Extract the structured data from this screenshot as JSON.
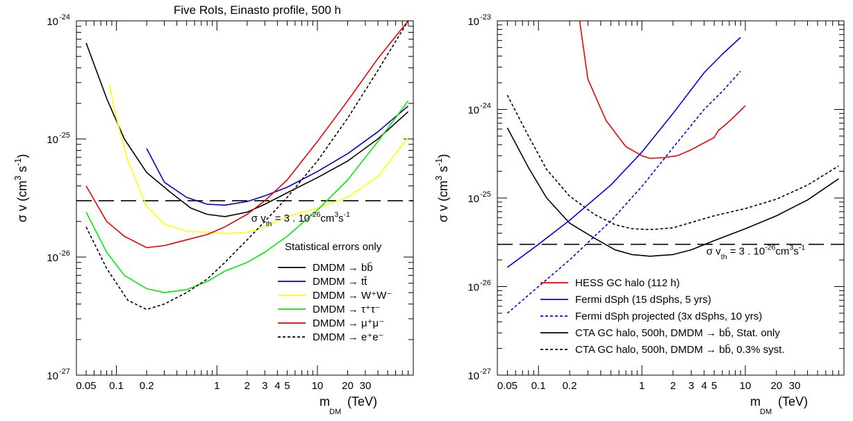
{
  "chart_data": [
    {
      "type": "line",
      "title": "Five RoIs, Einasto profile, 500 h",
      "xlabel": {
        "main": "m",
        "sub": "DM",
        "unit": "(TeV)"
      },
      "ylabel": {
        "main": "σ v (cm",
        "sup1": "3",
        "mid": " s",
        "sup2": "-1",
        "close": ")"
      },
      "x_scale": "log",
      "y_scale": "log",
      "xlim": [
        0.04,
        90
      ],
      "ylim": [
        1e-27,
        1e-24
      ],
      "x_ticks": [
        {
          "value": 0.05,
          "label": "0.05"
        },
        {
          "value": 0.1,
          "label": "0.1"
        },
        {
          "value": 0.2,
          "label": "0.2"
        },
        {
          "value": 1,
          "label": "1"
        },
        {
          "value": 2,
          "label": "2"
        },
        {
          "value": 3,
          "label": "3"
        },
        {
          "value": 4,
          "label": "4"
        },
        {
          "value": 5,
          "label": "5"
        },
        {
          "value": 10,
          "label": "10"
        },
        {
          "value": 20,
          "label": "20"
        },
        {
          "value": 30,
          "label": "30"
        }
      ],
      "y_ticks": [
        {
          "exp": -24,
          "label": "-24"
        },
        {
          "exp": -25,
          "label": "-25"
        },
        {
          "exp": -26,
          "label": "-26"
        },
        {
          "exp": -27,
          "label": "-27"
        }
      ],
      "hline": {
        "y": 3e-26,
        "style": "dashed",
        "color": "#000000"
      },
      "annotation": {
        "main": "σ v",
        "sub": "th",
        "mid": " = 3 . 10",
        "sup1": "-26",
        "unit": "cm",
        "sup2": "3",
        "unit2": "s",
        "sup3": "-1",
        "x": 2.2,
        "y": 2e-26
      },
      "legend_title": "Statistical errors only",
      "legend_position": "bottom-right",
      "series": [
        {
          "name": "DMDM → bb̄",
          "color": "#000000",
          "style": "solid",
          "x": [
            0.05,
            0.08,
            0.12,
            0.2,
            0.35,
            0.55,
            0.8,
            1.2,
            2,
            3,
            5,
            10,
            20,
            40,
            80
          ],
          "y": [
            6.5e-25,
            2.2e-25,
            1e-25,
            5.2e-26,
            3.5e-26,
            2.6e-26,
            2.3e-26,
            2.2e-26,
            2.4e-26,
            2.8e-26,
            3.5e-26,
            4.7e-26,
            6.5e-26,
            1e-25,
            1.7e-25
          ]
        },
        {
          "name": "DMDM → tt̄",
          "color": "#0000cc",
          "style": "solid",
          "x": [
            0.2,
            0.3,
            0.5,
            0.8,
            1.2,
            2,
            3,
            5,
            10,
            20,
            40,
            80
          ],
          "y": [
            8.3e-26,
            4.3e-26,
            3.2e-26,
            2.8e-26,
            2.75e-26,
            2.95e-26,
            3.3e-26,
            3.9e-26,
            5.3e-26,
            7.5e-26,
            1.15e-25,
            1.9e-25
          ]
        },
        {
          "name": "DMDM → W⁺W⁻",
          "color": "#ffff00",
          "style": "solid",
          "x": [
            0.085,
            0.1,
            0.13,
            0.2,
            0.3,
            0.5,
            0.8,
            1.2,
            2,
            3,
            5,
            10,
            20,
            40,
            80
          ],
          "y": [
            2.9e-25,
            1.5e-25,
            6.5e-26,
            2.7e-26,
            1.9e-26,
            1.65e-26,
            1.62e-26,
            1.58e-26,
            1.62e-26,
            1.8e-26,
            2.2e-26,
            2.6e-26,
            3.2e-26,
            4.8e-26,
            1.03e-25
          ]
        },
        {
          "name": "DMDM → τ⁺τ⁻",
          "color": "#00ee00",
          "style": "solid",
          "x": [
            0.05,
            0.08,
            0.12,
            0.2,
            0.3,
            0.5,
            0.8,
            1.2,
            2,
            3,
            5,
            10,
            20,
            40,
            80
          ],
          "y": [
            2.4e-26,
            1.1e-26,
            7e-27,
            5.4e-27,
            5e-27,
            5.3e-27,
            6.2e-27,
            7.6e-27,
            9e-27,
            1.1e-26,
            1.5e-26,
            2.5e-26,
            4.5e-26,
            9.5e-26,
            2.1e-25
          ]
        },
        {
          "name": "DMDM → μ⁺μ⁻",
          "color": "#ee0000",
          "style": "solid",
          "x": [
            0.05,
            0.08,
            0.12,
            0.2,
            0.3,
            0.5,
            0.8,
            1.2,
            2,
            3,
            5,
            10,
            20,
            40,
            80
          ],
          "y": [
            4e-26,
            2e-26,
            1.5e-26,
            1.2e-26,
            1.25e-26,
            1.4e-26,
            1.55e-26,
            1.8e-26,
            2.3e-26,
            3e-26,
            4.5e-26,
            9.5e-26,
            2.1e-25,
            4.8e-25,
            1e-24
          ]
        },
        {
          "name": "DMDM → e⁺e⁻",
          "color": "#000000",
          "style": "dotted",
          "x": [
            0.05,
            0.08,
            0.13,
            0.2,
            0.3,
            0.5,
            0.8,
            1.2,
            2,
            3,
            5,
            10,
            20,
            40,
            80
          ],
          "y": [
            1.8e-26,
            8e-27,
            4.3e-27,
            3.6e-27,
            4e-27,
            5e-27,
            6.5e-27,
            9e-27,
            1.4e-26,
            2e-26,
            3.2e-26,
            6.5e-26,
            1.5e-25,
            3.8e-25,
            1e-24
          ]
        }
      ]
    },
    {
      "type": "line",
      "title": "",
      "xlabel": {
        "main": "m",
        "sub": "DM",
        "unit": "(TeV)"
      },
      "ylabel": {
        "main": "σ v (cm",
        "sup1": "3",
        "mid": " s",
        "sup2": "-1",
        "close": ")"
      },
      "x_scale": "log",
      "y_scale": "log",
      "xlim": [
        0.04,
        90
      ],
      "ylim": [
        1e-27,
        1e-23
      ],
      "x_ticks": [
        {
          "value": 0.05,
          "label": "0.05"
        },
        {
          "value": 0.1,
          "label": "0.1"
        },
        {
          "value": 0.2,
          "label": "0.2"
        },
        {
          "value": 1,
          "label": "1"
        },
        {
          "value": 2,
          "label": "2"
        },
        {
          "value": 3,
          "label": "3"
        },
        {
          "value": 4,
          "label": "4"
        },
        {
          "value": 5,
          "label": "5"
        },
        {
          "value": 10,
          "label": "10"
        },
        {
          "value": 20,
          "label": "20"
        },
        {
          "value": 30,
          "label": "30"
        }
      ],
      "y_ticks": [
        {
          "exp": -23,
          "label": "-23"
        },
        {
          "exp": -24,
          "label": "-24"
        },
        {
          "exp": -25,
          "label": "-25"
        },
        {
          "exp": -26,
          "label": "-26"
        },
        {
          "exp": -27,
          "label": "-27"
        }
      ],
      "hline": {
        "y": 3e-26,
        "style": "dashed",
        "color": "#000000"
      },
      "annotation": {
        "main": "σ v",
        "sub": "th",
        "mid": " = 3 . 10",
        "sup1": "-26",
        "unit": "cm",
        "sup2": "3",
        "unit2": "s",
        "sup3": "-1",
        "x": 4.2,
        "y": 2.3e-26
      },
      "legend_title": "",
      "legend_position": "bottom-right",
      "series": [
        {
          "name": "HESS GC halo (112 h)",
          "color": "#ee0000",
          "style": "solid",
          "x": [
            0.25,
            0.3,
            0.45,
            0.7,
            1.0,
            1.2,
            1.6,
            2.2,
            3,
            4,
            5,
            5.5,
            6.5,
            8,
            10
          ],
          "y": [
            1e-23,
            2.2e-24,
            7.5e-25,
            3.8e-25,
            3e-25,
            2.8e-25,
            2.85e-25,
            3e-25,
            3.5e-25,
            4.2e-25,
            4.8e-25,
            5.8e-25,
            6.8e-25,
            8.5e-25,
            1.1e-24
          ]
        },
        {
          "name": "Fermi dSph (15 dSphs, 5 yrs)",
          "color": "#0000ee",
          "style": "solid",
          "x": [
            0.05,
            0.1,
            0.2,
            0.5,
            1,
            2,
            4,
            6,
            9
          ],
          "y": [
            1.65e-26,
            3e-26,
            5.6e-26,
            1.4e-25,
            3.3e-25,
            9e-25,
            2.6e-24,
            4.2e-24,
            6.5e-24
          ]
        },
        {
          "name": "Fermi dSph projected (3x dSphs, 10 yrs)",
          "color": "#0000ee",
          "style": "dotted",
          "x": [
            0.05,
            0.1,
            0.2,
            0.5,
            1,
            2,
            4,
            6,
            9
          ],
          "y": [
            5e-27,
            1e-26,
            2e-26,
            5.5e-26,
            1.35e-25,
            3.7e-25,
            1e-24,
            1.6e-24,
            2.7e-24
          ]
        },
        {
          "name": "CTA GC halo, 500h, DMDM  → bb̄, Stat. only",
          "color": "#000000",
          "style": "solid",
          "x": [
            0.05,
            0.08,
            0.12,
            0.2,
            0.35,
            0.55,
            0.8,
            1.2,
            2,
            3,
            5,
            10,
            20,
            40,
            80
          ],
          "y": [
            6.2e-25,
            2.2e-25,
            1e-25,
            5.2e-26,
            3.5e-26,
            2.6e-26,
            2.3e-26,
            2.2e-26,
            2.3e-26,
            2.6e-26,
            3.3e-26,
            4.5e-26,
            6.3e-26,
            9.5e-26,
            1.65e-25
          ]
        },
        {
          "name": "CTA GC halo, 500h, DMDM  → bb̄, 0.3% syst.",
          "color": "#000000",
          "style": "dotted",
          "x": [
            0.05,
            0.08,
            0.12,
            0.2,
            0.35,
            0.55,
            0.8,
            1.2,
            2,
            3,
            5,
            10,
            20,
            40,
            80
          ],
          "y": [
            1.45e-24,
            5e-25,
            2.1e-25,
            1.05e-25,
            6.5e-26,
            5e-26,
            4.5e-26,
            4.4e-26,
            4.6e-26,
            5.3e-26,
            6.3e-26,
            7.6e-26,
            9.7e-26,
            1.4e-25,
            2.3e-25
          ]
        }
      ]
    }
  ]
}
